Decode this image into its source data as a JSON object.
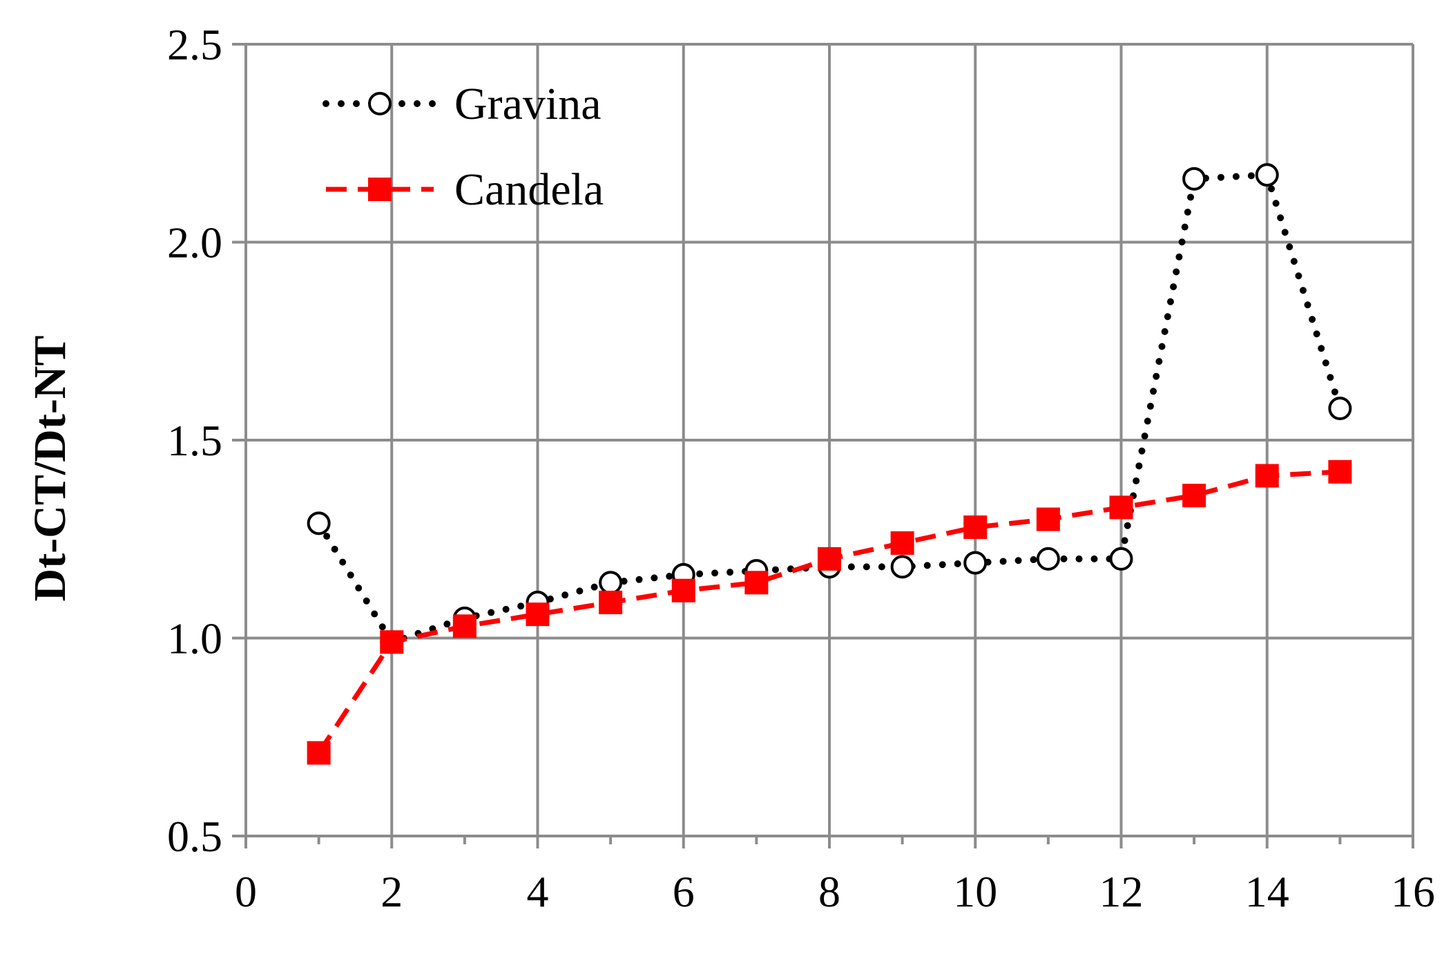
{
  "chart_data": {
    "type": "line",
    "title": "",
    "xlabel": "",
    "ylabel": "Dt-CT/Dt-NT",
    "xlim": [
      0,
      16
    ],
    "ylim": [
      0.5,
      2.5
    ],
    "xticks": [
      0,
      2,
      4,
      6,
      8,
      10,
      12,
      14,
      16
    ],
    "yticks": [
      "0.5",
      "1.0",
      "1.5",
      "2.0",
      "2.5"
    ],
    "grid": true,
    "legend": "top-left",
    "series": [
      {
        "name": "Gravina",
        "style": "dotted",
        "marker": "open-circle",
        "color": "#000000",
        "x": [
          1,
          2,
          3,
          4,
          5,
          6,
          7,
          8,
          9,
          10,
          11,
          12,
          13,
          14,
          15
        ],
        "y": [
          1.29,
          0.99,
          1.05,
          1.09,
          1.14,
          1.16,
          1.17,
          1.18,
          1.18,
          1.19,
          1.2,
          1.2,
          2.16,
          2.17,
          1.58
        ]
      },
      {
        "name": "Candela",
        "style": "dashed",
        "marker": "filled-square",
        "color": "#ff0000",
        "x": [
          1,
          2,
          3,
          4,
          5,
          6,
          7,
          8,
          9,
          10,
          11,
          12,
          13,
          14,
          15
        ],
        "y": [
          0.71,
          0.99,
          1.03,
          1.06,
          1.09,
          1.12,
          1.14,
          1.2,
          1.24,
          1.28,
          1.3,
          1.33,
          1.36,
          1.41,
          1.42
        ]
      }
    ]
  }
}
